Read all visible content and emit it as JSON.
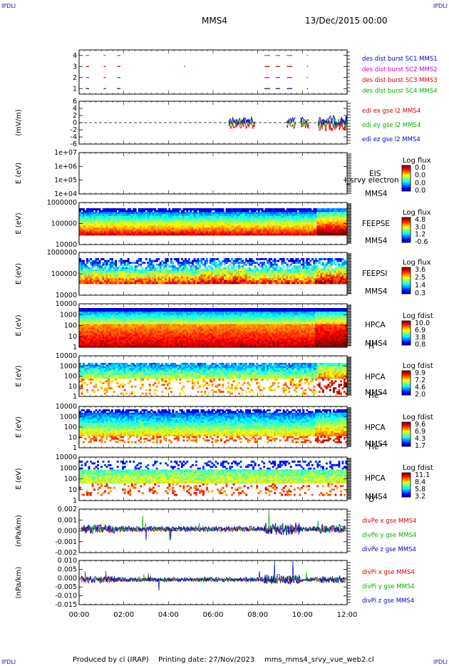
{
  "header": {
    "corner_tl": "IPDLI",
    "corner_tr": "IPDLI",
    "corner_bl": "IPDLI",
    "corner_br": "IPDLI",
    "spacecraft": "MMS4",
    "date": "13/Dec/2015 00:00"
  },
  "footer": {
    "produced": "Produced by cl (IRAP)",
    "printing": "Printing date: 27/Nov/2023",
    "file": "mms_mms4_srvy_vue_web2.cl"
  },
  "chart_data": [
    {
      "type": "scatter",
      "panel": "burst",
      "y_ticks": [
        "1",
        "2",
        "3",
        "4"
      ],
      "ylim": [
        0.5,
        4.5
      ],
      "legend": [
        {
          "text": "des dist burst SC1 MMS1",
          "color": "#0000c8"
        },
        {
          "text": "des dist burst SC2 MMS2",
          "color": "#c800c8"
        },
        {
          "text": "des dist burst SC3 MMS3",
          "color": "#d00000"
        },
        {
          "text": "des dist burst SC4 MMS4",
          "color": "#00b000"
        }
      ],
      "intervals_hours": [
        [
          0.3,
          0.45
        ],
        [
          1.1,
          1.2
        ],
        [
          1.7,
          1.85
        ],
        [
          4.7,
          4.75
        ],
        [
          8.3,
          8.55
        ],
        [
          8.8,
          9.0
        ],
        [
          9.3,
          9.55
        ],
        [
          10.2,
          10.25
        ]
      ]
    },
    {
      "type": "line",
      "panel": "edi",
      "ylabel": "(mV/m)",
      "y_ticks": [
        "6",
        "4",
        "2",
        "0",
        "-2",
        "-4",
        "-6"
      ],
      "ylim": [
        -6,
        6
      ],
      "legend": [
        {
          "text": "edi ex gse l2 MMS4",
          "color": "#d00000"
        },
        {
          "text": "edi ey gse l2 MMS4",
          "color": "#00b000"
        },
        {
          "text": "edi ez gse l2 MMS4",
          "color": "#0000c8"
        }
      ]
    },
    {
      "type": "heatmap",
      "panel": "eis",
      "ylabel": "E (eV)",
      "y_ticks": [
        "1e+07",
        "1e+06",
        "1e+05",
        "1e+04"
      ],
      "labels": [
        "EIS",
        "MMS4"
      ],
      "overlay": "l_srvy electron to",
      "cbar_title": "Log flux",
      "cbar_ticks": [
        "0.0",
        "0.0",
        "0.0",
        "0.0"
      ]
    },
    {
      "type": "heatmap",
      "panel": "feepse",
      "ylabel": "E (eV)",
      "y_ticks": [
        "1000000",
        "100000",
        "10000"
      ],
      "labels": [
        "FEEPSE",
        "MMS4"
      ],
      "cbar_title": "Log flux",
      "cbar_ticks": [
        "4.8",
        "3.0",
        "1.2",
        "-0.6"
      ]
    },
    {
      "type": "heatmap",
      "panel": "feepsi",
      "ylabel": "E (eV)",
      "y_ticks": [
        "1000000",
        "100000",
        "10000"
      ],
      "labels": [
        "FEEPSI",
        "MMS4"
      ],
      "cbar_title": "Log flux",
      "cbar_ticks": [
        "3.6",
        "2.5",
        "1.4",
        "0.3"
      ]
    },
    {
      "type": "heatmap",
      "panel": "hpca-h",
      "ylabel": "E (eV)",
      "y_ticks": [
        "10000",
        "1000",
        "100",
        "10",
        "1"
      ],
      "labels": [
        "HPCA",
        "MMS4",
        "H+"
      ],
      "cbar_title": "Log fdist",
      "cbar_ticks": [
        "10.0",
        "6.9",
        "3.8",
        "0.8"
      ]
    },
    {
      "type": "heatmap",
      "panel": "hpca-he",
      "ylabel": "E (eV)",
      "y_ticks": [
        "10000",
        "1000",
        "100",
        "10",
        "1"
      ],
      "labels": [
        "HPCA",
        "MMS4",
        "He+"
      ],
      "cbar_title": "Log fdist",
      "cbar_ticks": [
        "9.9",
        "7.2",
        "4.6",
        "2.0"
      ]
    },
    {
      "type": "heatmap",
      "panel": "hpca-he2",
      "ylabel": "E (eV)",
      "y_ticks": [
        "10000",
        "1000",
        "100",
        "10",
        "1"
      ],
      "labels": [
        "HPCA",
        "MMS4",
        "He++"
      ],
      "cbar_title": "Log fdist",
      "cbar_ticks": [
        "9.6",
        "6.9",
        "4.3",
        "1.7"
      ]
    },
    {
      "type": "heatmap",
      "panel": "hpca-o",
      "ylabel": "E (eV)",
      "y_ticks": [
        "10000",
        "1000",
        "100",
        "10",
        "1"
      ],
      "labels": [
        "HPCA",
        "MMS4",
        "O+"
      ],
      "cbar_title": "Log fdist",
      "cbar_ticks": [
        "11.1",
        "8.4",
        "5.8",
        "3.2"
      ]
    },
    {
      "type": "line",
      "panel": "divpe",
      "ylabel": "(nPa/km)",
      "y_ticks": [
        "0.002",
        "0.001",
        "0.000",
        "-0.001",
        "-0.002"
      ],
      "ylim": [
        -0.003,
        0.0025
      ],
      "legend": [
        {
          "text": "divPe x gse MMS4",
          "color": "#d00000"
        },
        {
          "text": "divPe y gse MMS4",
          "color": "#00b000"
        },
        {
          "text": "divPe z gse MMS4",
          "color": "#0000c8"
        }
      ]
    },
    {
      "type": "line",
      "panel": "divpi",
      "ylabel": "(nPa/km)",
      "y_ticks": [
        "0.010",
        "0.005",
        "0.000",
        "-0.005",
        "-0.010",
        "-0.015"
      ],
      "ylim": [
        -0.016,
        0.012
      ],
      "legend": [
        {
          "text": "divPi x gse MMS4",
          "color": "#d00000"
        },
        {
          "text": "divPi y gse MMS4",
          "color": "#00b000"
        },
        {
          "text": "divPi z gse MMS4",
          "color": "#0000c8"
        }
      ]
    }
  ],
  "x_axis": {
    "ticks": [
      "00:00",
      "02:00",
      "04:00",
      "06:00",
      "08:00",
      "10:00",
      "12:00"
    ],
    "range_hours": [
      0,
      12
    ]
  }
}
